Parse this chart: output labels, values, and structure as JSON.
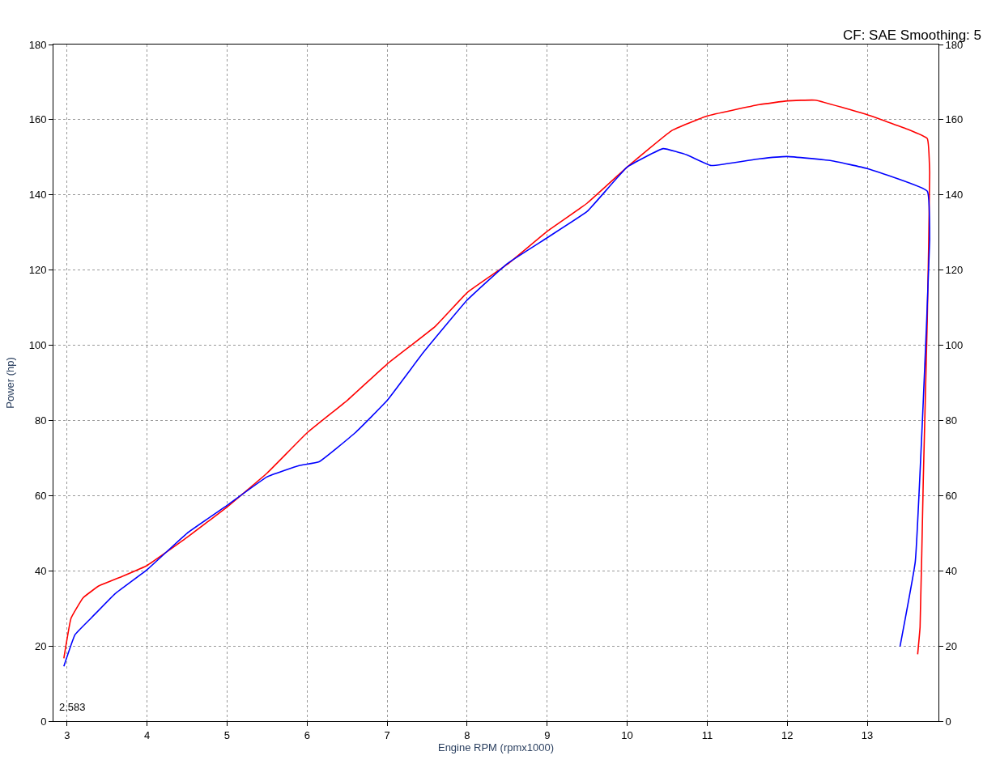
{
  "chart_data": {
    "type": "line",
    "xlabel": "Engine RPM (rpmx1000)",
    "ylabel": "Power (hp)",
    "annotations": [
      "CF: SAE Smoothing: 5",
      "2.583"
    ],
    "xlim": [
      2.83,
      13.89
    ],
    "xticks": [
      3,
      4,
      5,
      6,
      7,
      8,
      9,
      10,
      11,
      12,
      13
    ],
    "ylim": [
      0,
      180
    ],
    "yticks": [
      0,
      20,
      40,
      60,
      80,
      100,
      120,
      140,
      160,
      180
    ],
    "y2lim": [
      0,
      180
    ],
    "y2ticks": [
      0,
      20,
      40,
      60,
      80,
      100,
      120,
      140,
      160,
      180
    ],
    "grid": true,
    "line_style": "solid",
    "marker": "none",
    "legend": false,
    "series": [
      {
        "color": "#ff0000",
        "x": [
          2.96,
          3.05,
          3.2,
          3.4,
          3.7,
          4,
          4.5,
          5,
          5.5,
          6,
          6.5,
          7,
          7.6,
          8,
          8.5,
          9,
          9.5,
          10,
          10.55,
          11,
          11.65,
          12,
          12.35,
          13,
          13.5,
          13.75,
          13.78,
          13.75,
          13.7,
          13.66,
          13.63
        ],
        "values": [
          16.7,
          27.4,
          32.8,
          36,
          38.6,
          41.4,
          48.9,
          57,
          66,
          76.7,
          85.3,
          95,
          105,
          114,
          121.5,
          130.3,
          137.8,
          147.4,
          157,
          161,
          164,
          165,
          165.2,
          161.3,
          157.5,
          155,
          146,
          106.7,
          63.9,
          25,
          17.8
        ]
      },
      {
        "color": "#0000ff",
        "x": [
          2.96,
          3.1,
          3.3,
          3.6,
          4,
          4.5,
          5,
          5.5,
          5.9,
          6.15,
          6.6,
          7,
          7.45,
          8,
          8.5,
          9,
          9.5,
          10,
          10.45,
          10.75,
          11.05,
          11.65,
          12,
          12.55,
          13,
          13.75,
          13.78,
          13.7,
          13.6,
          13.41
        ],
        "values": [
          14.6,
          23,
          27.4,
          33.9,
          40.3,
          50,
          57.4,
          65,
          68,
          69,
          76.7,
          85.3,
          98,
          112,
          121.7,
          128.6,
          135.6,
          147.4,
          152.3,
          150.6,
          147.8,
          149.6,
          150.2,
          149.1,
          147,
          141,
          128,
          85,
          42.4,
          19.9
        ]
      }
    ]
  }
}
